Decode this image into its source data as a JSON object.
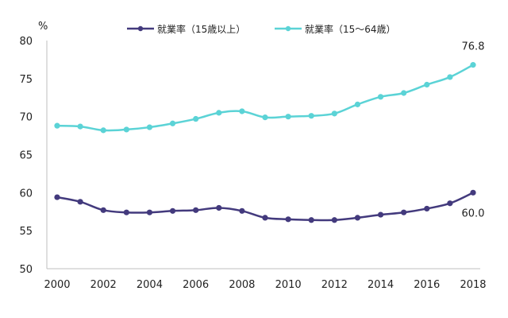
{
  "chart_data": {
    "type": "line",
    "title": "",
    "xlabel": "",
    "ylabel": "%",
    "ylim": [
      50,
      80
    ],
    "yticks": [
      50,
      55,
      60,
      65,
      70,
      75,
      80
    ],
    "xticks": [
      2000,
      2002,
      2004,
      2006,
      2008,
      2010,
      2012,
      2014,
      2016,
      2018
    ],
    "xlim": [
      2000,
      2018
    ],
    "grid": false,
    "legend": "top-center",
    "x": [
      2000,
      2001,
      2002,
      2003,
      2004,
      2005,
      2006,
      2007,
      2008,
      2009,
      2010,
      2011,
      2012,
      2013,
      2014,
      2015,
      2016,
      2017,
      2018
    ],
    "series": [
      {
        "name": "就業率（15歳以上）",
        "color": "#433a7d",
        "values": [
          59.4,
          58.8,
          57.7,
          57.4,
          57.4,
          57.6,
          57.7,
          58.0,
          57.6,
          56.7,
          56.5,
          56.4,
          56.4,
          56.7,
          57.1,
          57.4,
          57.9,
          58.6,
          60.0
        ],
        "end_label": "60.0"
      },
      {
        "name": "就業率（15～64歳）",
        "color": "#5bd3d6",
        "values": [
          68.8,
          68.7,
          68.2,
          68.3,
          68.6,
          69.1,
          69.7,
          70.5,
          70.7,
          69.9,
          70.0,
          70.1,
          70.4,
          71.6,
          72.6,
          73.1,
          74.2,
          75.2,
          76.8
        ],
        "end_label": "76.8"
      }
    ]
  }
}
